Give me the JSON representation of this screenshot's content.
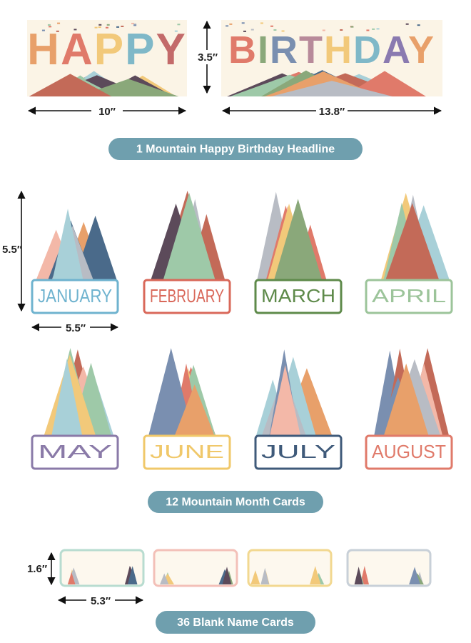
{
  "headline": {
    "words": [
      "HAPPY",
      "BIRTHDAY"
    ],
    "height": "3.5″",
    "widths": [
      "10″",
      "13.8″"
    ],
    "caption": "1 Mountain Happy Birthday Headline"
  },
  "month_cards": {
    "months": [
      "JANUARY",
      "FEBRUARY",
      "MARCH",
      "APRIL",
      "MAY",
      "JUNE",
      "JULY",
      "AUGUST"
    ],
    "height": "5.5″",
    "width": "5.5″",
    "caption": "12 Mountain Month Cards"
  },
  "name_cards": {
    "height": "1.6″",
    "width": "5.3″",
    "caption": "36 Blank Name Cards"
  }
}
